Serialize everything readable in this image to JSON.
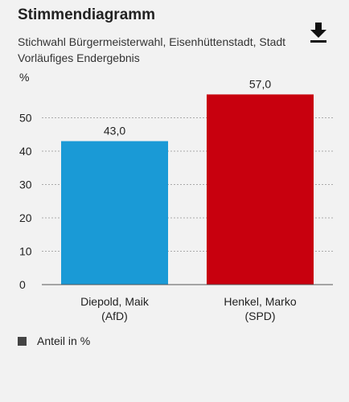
{
  "chart_data": {
    "type": "bar",
    "title": "Stimmendiagramm",
    "subtitle_lines": [
      "Stichwahl Bürgermeisterwahl, Eisenhüttenstadt, Stadt",
      "Vorläufiges Endergebnis"
    ],
    "ylabel": "%",
    "ylim": [
      0,
      60
    ],
    "yticks": [
      "0",
      "10",
      "20",
      "30",
      "40",
      "50"
    ],
    "grid": true,
    "categories": [
      [
        "Diepold, Maik",
        "(AfD)"
      ],
      [
        "Henkel, Marko",
        "(SPD)"
      ]
    ],
    "values": [
      43.0,
      57.0
    ],
    "value_labels": [
      "43,0",
      "57,0"
    ],
    "colors": [
      "#1a9ad6",
      "#c8000e"
    ],
    "legend": [
      "Anteil in %"
    ],
    "legend_position": "bottom-left"
  },
  "icons": {
    "download": "download-icon"
  }
}
